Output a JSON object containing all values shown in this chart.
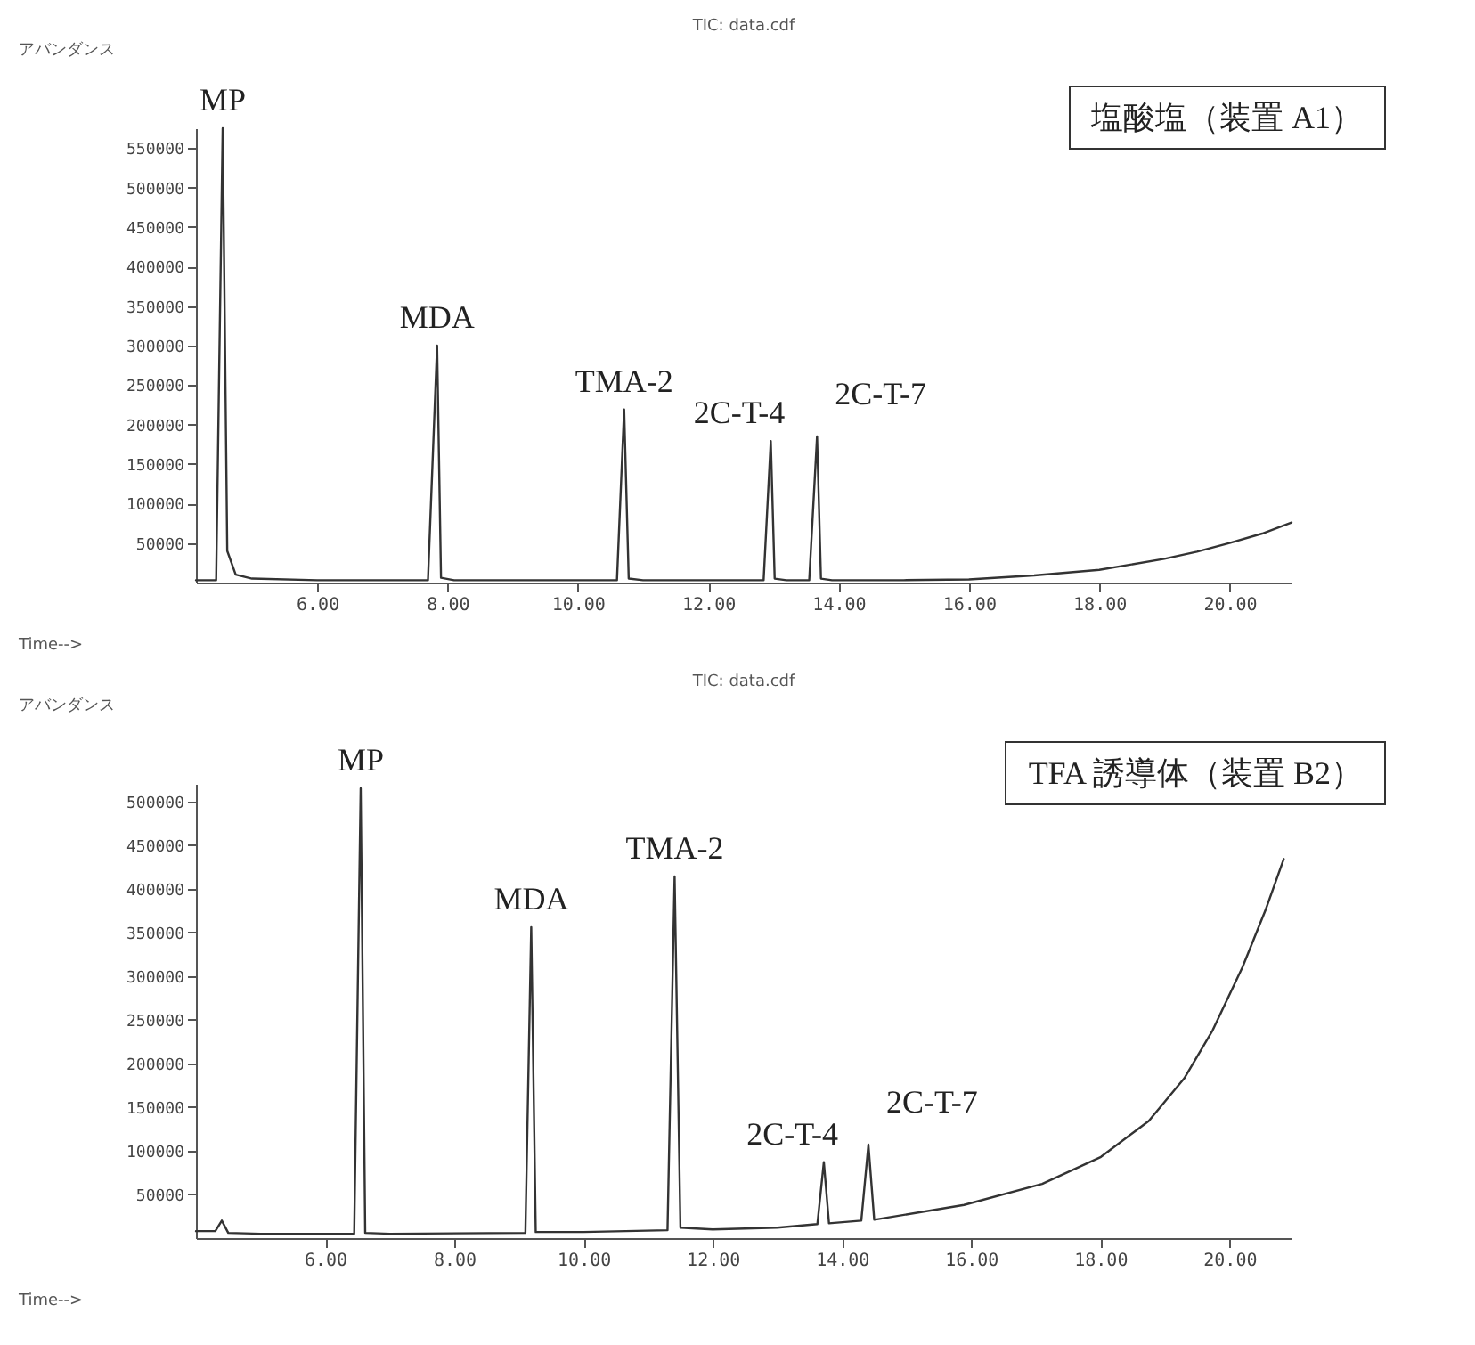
{
  "chart_data": [
    {
      "type": "line",
      "title": "TIC: data.cdf",
      "xlabel": "Time-->",
      "ylabel": "アバンダンス",
      "x": [
        4.14,
        4.45,
        4.55,
        4.62,
        4.75,
        5.0,
        6.0,
        7.7,
        7.84,
        7.9,
        8.1,
        9.0,
        10.6,
        10.71,
        10.78,
        11.0,
        12.0,
        12.85,
        12.96,
        13.02,
        13.2,
        13.55,
        13.67,
        13.73,
        13.9,
        15.0,
        16.0,
        17.0,
        18.0,
        19.0,
        19.5,
        20.0,
        20.5,
        20.95
      ],
      "series": [
        {
          "color": "#333333",
          "values": [
            3000,
            3000,
            575000,
            40000,
            10000,
            5000,
            3000,
            3000,
            300000,
            6000,
            3000,
            3000,
            3000,
            219000,
            5000,
            3000,
            3000,
            3000,
            179000,
            5000,
            3000,
            3000,
            185000,
            5000,
            3000,
            3000,
            4000,
            9000,
            16000,
            30000,
            39000,
            50000,
            62000,
            76000
          ]
        }
      ],
      "xlim": [
        4.14,
        20.95
      ],
      "ylim": [
        0,
        575000
      ],
      "xticks": [
        {
          "value": 6,
          "label": "6.00"
        },
        {
          "value": 8,
          "label": "8.00"
        },
        {
          "value": 10,
          "label": "10.00"
        },
        {
          "value": 12,
          "label": "12.00"
        },
        {
          "value": 14,
          "label": "14.00"
        },
        {
          "value": 16,
          "label": "16.00"
        },
        {
          "value": 18,
          "label": "18.00"
        },
        {
          "value": 20,
          "label": "20.00"
        }
      ],
      "yticks": [
        50000,
        100000,
        150000,
        200000,
        250000,
        300000,
        350000,
        400000,
        450000,
        500000,
        550000
      ],
      "annotations": [
        {
          "text": "MP",
          "x": 4.55,
          "y": 575000
        },
        {
          "text": "MDA",
          "x": 7.84,
          "y": 300000
        },
        {
          "text": "TMA-2",
          "x": 10.71,
          "y": 219000
        },
        {
          "text": "2C-T-4",
          "x": 12.96,
          "y": 179000
        },
        {
          "text": "2C-T-7",
          "x": 13.67,
          "y": 185000
        },
        "塩酸塩（装置 A1）"
      ]
    },
    {
      "type": "line",
      "title": "TIC: data.cdf",
      "xlabel": "Time-->",
      "ylabel": "アバンダンス",
      "x": [
        4.0,
        4.3,
        4.4,
        4.5,
        5.0,
        6.0,
        6.45,
        6.55,
        6.62,
        7.0,
        9.1,
        9.19,
        9.26,
        10.0,
        11.3,
        11.41,
        11.5,
        12.0,
        13.0,
        13.62,
        13.72,
        13.8,
        14.3,
        14.41,
        14.5,
        15.89,
        17.1,
        18.01,
        18.75,
        19.3,
        19.74,
        20.2,
        20.56,
        20.84
      ],
      "series": [
        {
          "color": "#333333",
          "values": [
            8000,
            8000,
            20000,
            6000,
            5000,
            5000,
            5000,
            515000,
            6000,
            5000,
            6000,
            356000,
            7000,
            7000,
            9000,
            414000,
            12000,
            10000,
            12000,
            16000,
            87000,
            17000,
            20000,
            107000,
            21000,
            38000,
            62000,
            93000,
            134000,
            183000,
            238000,
            310000,
            376000,
            434000
          ]
        }
      ],
      "xlim": [
        4.0,
        20.96
      ],
      "ylim": [
        0,
        520000
      ],
      "xticks": [
        {
          "value": 6,
          "label": "6.00"
        },
        {
          "value": 8,
          "label": "8.00"
        },
        {
          "value": 10,
          "label": "10.00"
        },
        {
          "value": 12,
          "label": "12.00"
        },
        {
          "value": 14,
          "label": "14.00"
        },
        {
          "value": 16,
          "label": "16.00"
        },
        {
          "value": 18,
          "label": "18.00"
        },
        {
          "value": 20,
          "label": "20.00"
        }
      ],
      "yticks": [
        50000,
        100000,
        150000,
        200000,
        250000,
        300000,
        350000,
        400000,
        450000,
        500000
      ],
      "annotations": [
        {
          "text": "MP",
          "x": 6.55,
          "y": 515000
        },
        {
          "text": "MDA",
          "x": 9.19,
          "y": 356000
        },
        {
          "text": "TMA-2",
          "x": 11.41,
          "y": 414000
        },
        {
          "text": "2C-T-4",
          "x": 13.72,
          "y": 87000
        },
        {
          "text": "2C-T-7",
          "x": 14.41,
          "y": 107000
        },
        "TFA 誘導体（装置 B2）"
      ]
    }
  ]
}
